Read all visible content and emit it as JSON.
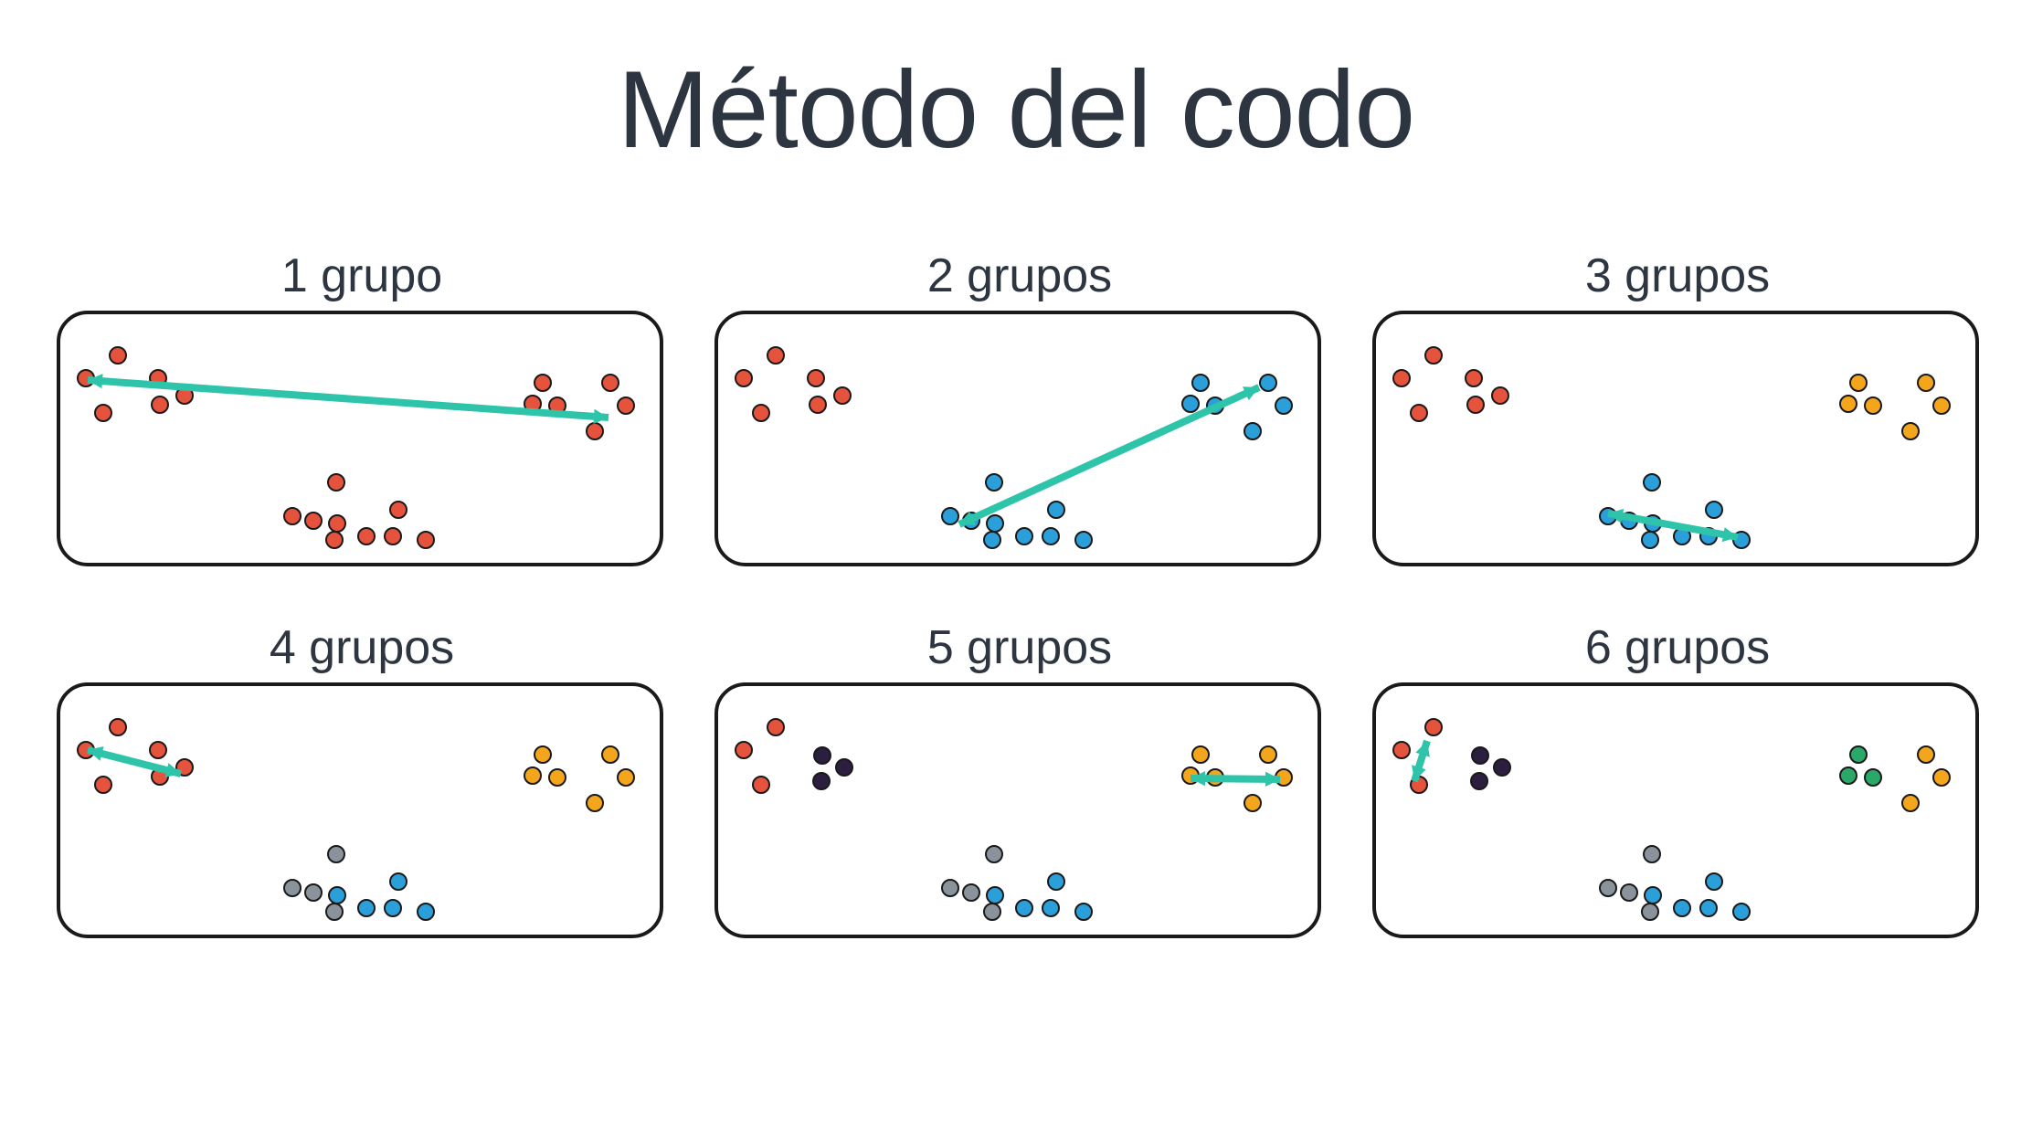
{
  "title": "Mètodo del codo",
  "title_display": "Método del codo",
  "colors": {
    "distance_line": "#2ec4aa",
    "point_stroke": "#1a1a1a",
    "clusters": {
      "red": "#e5533d",
      "blue": "#2b9fd9",
      "orange": "#f3a51c",
      "gray": "#8a939c",
      "dark": "#2b1e3f",
      "green": "#2aa86a"
    }
  },
  "panels": [
    {
      "label": "1 grupo"
    },
    {
      "label": "2 grupos"
    },
    {
      "label": "3 grupos"
    },
    {
      "label": "4 grupos"
    },
    {
      "label": "5 grupos"
    },
    {
      "label": "6 grupos"
    }
  ]
}
